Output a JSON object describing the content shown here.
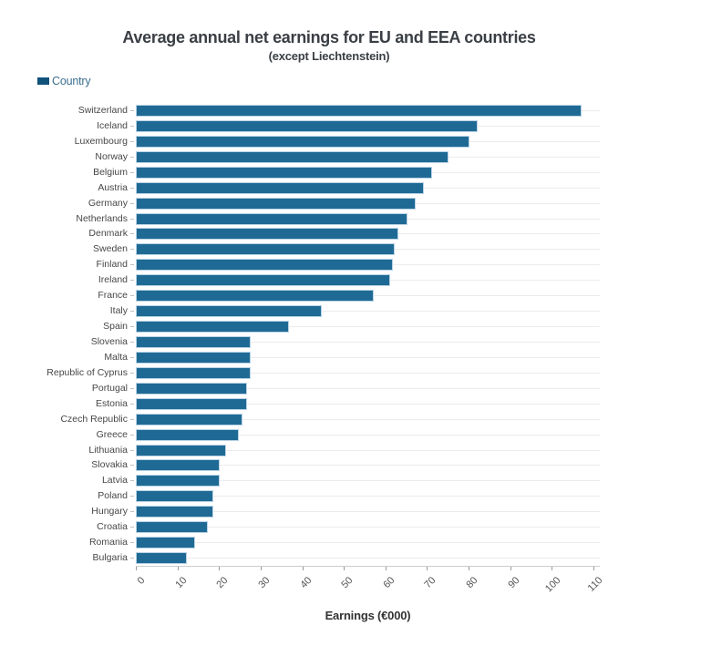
{
  "chart_data": {
    "type": "bar",
    "orientation": "horizontal",
    "title": "Average annual net earnings for EU and EEA countries",
    "subtitle": "(except Liechtenstein)",
    "xlabel": "Earnings (€000)",
    "legend": [
      "Country"
    ],
    "legend_position": "top-left",
    "categories": [
      "Switzerland",
      "Iceland",
      "Luxembourg",
      "Norway",
      "Belgium",
      "Austria",
      "Germany",
      "Netherlands",
      "Denmark",
      "Sweden",
      "Finland",
      "Ireland",
      "France",
      "Italy",
      "Spain",
      "Slovenia",
      "Malta",
      "Republic of Cyprus",
      "Portugal",
      "Estonia",
      "Czech Republic",
      "Greece",
      "Lithuania",
      "Slovakia",
      "Latvia",
      "Poland",
      "Hungary",
      "Croatia",
      "Romania",
      "Bulgaria"
    ],
    "values": [
      107,
      82,
      80,
      75,
      71,
      69,
      67,
      65,
      63,
      62,
      61.5,
      61,
      57,
      44.5,
      36.5,
      27.5,
      27.5,
      27.5,
      26.5,
      26.5,
      25.5,
      24.5,
      21.5,
      20,
      20,
      18.5,
      18.5,
      17,
      14,
      12
    ],
    "xlim": [
      0,
      110
    ],
    "xticks": [
      0,
      10,
      20,
      30,
      40,
      50,
      60,
      70,
      80,
      90,
      100,
      110
    ],
    "xtick_rotation": -45,
    "grid": "horizontal-category-lines-only",
    "colors": {
      "bar_fill": "#1F6A94",
      "bar_stroke": "#B9D3E6",
      "legend_swatch": "#11527A",
      "legend_text": "#3C6E8F",
      "gridline": "#ECECEC"
    }
  }
}
